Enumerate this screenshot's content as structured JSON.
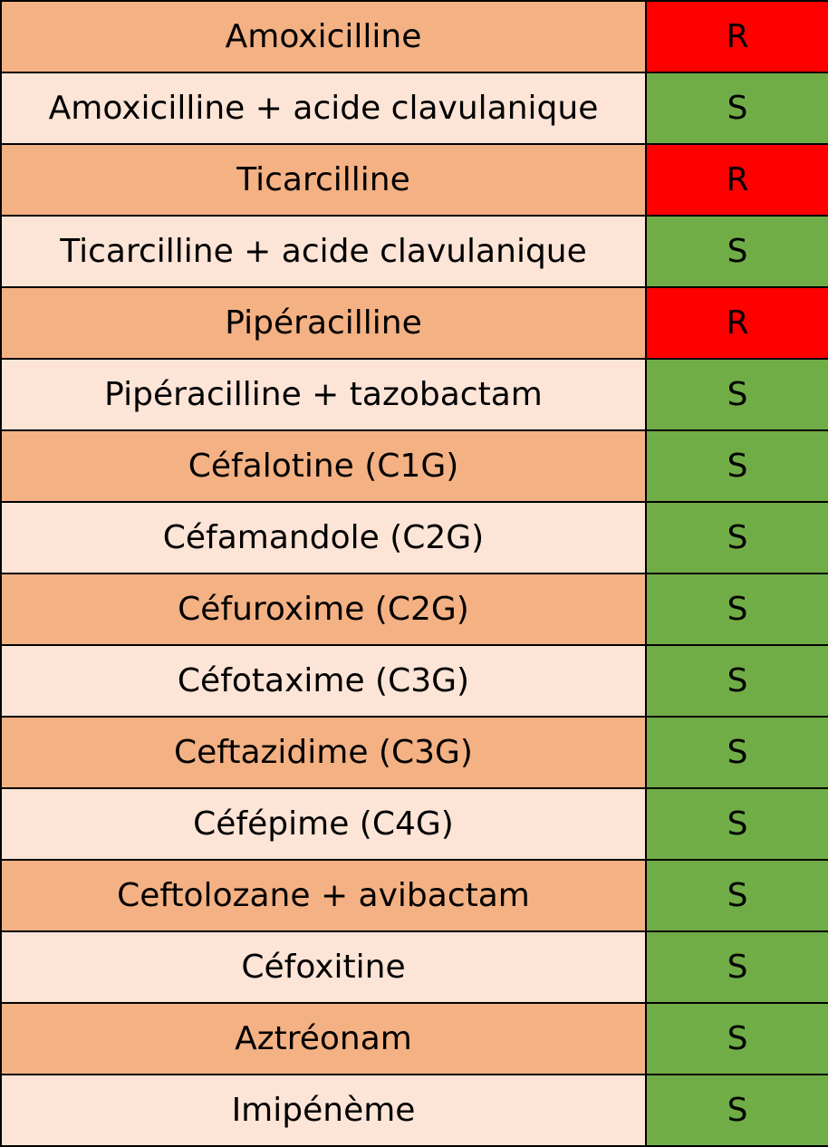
{
  "colors": {
    "row_dark": "#f4b183",
    "row_light": "#fce4d6",
    "resistant": "#ff0000",
    "susceptible": "#70ad47"
  },
  "rows": [
    {
      "antibiotic": "Amoxicilline",
      "result": "R"
    },
    {
      "antibiotic": "Amoxicilline + acide clavulanique",
      "result": "S"
    },
    {
      "antibiotic": "Ticarcilline",
      "result": "R"
    },
    {
      "antibiotic": "Ticarcilline + acide clavulanique",
      "result": "S"
    },
    {
      "antibiotic": "Pipéracilline",
      "result": "R"
    },
    {
      "antibiotic": "Pipéracilline + tazobactam",
      "result": "S"
    },
    {
      "antibiotic": "Céfalotine (C1G)",
      "result": "S"
    },
    {
      "antibiotic": "Céfamandole (C2G)",
      "result": "S"
    },
    {
      "antibiotic": "Céfuroxime (C2G)",
      "result": "S"
    },
    {
      "antibiotic": "Céfotaxime (C3G)",
      "result": "S"
    },
    {
      "antibiotic": "Ceftazidime (C3G)",
      "result": "S"
    },
    {
      "antibiotic": "Céfépime (C4G)",
      "result": "S"
    },
    {
      "antibiotic": "Ceftolozane + avibactam",
      "result": "S"
    },
    {
      "antibiotic": "Céfoxitine",
      "result": "S"
    },
    {
      "antibiotic": "Aztréonam",
      "result": "S"
    },
    {
      "antibiotic": "Imipénème",
      "result": "S"
    }
  ]
}
